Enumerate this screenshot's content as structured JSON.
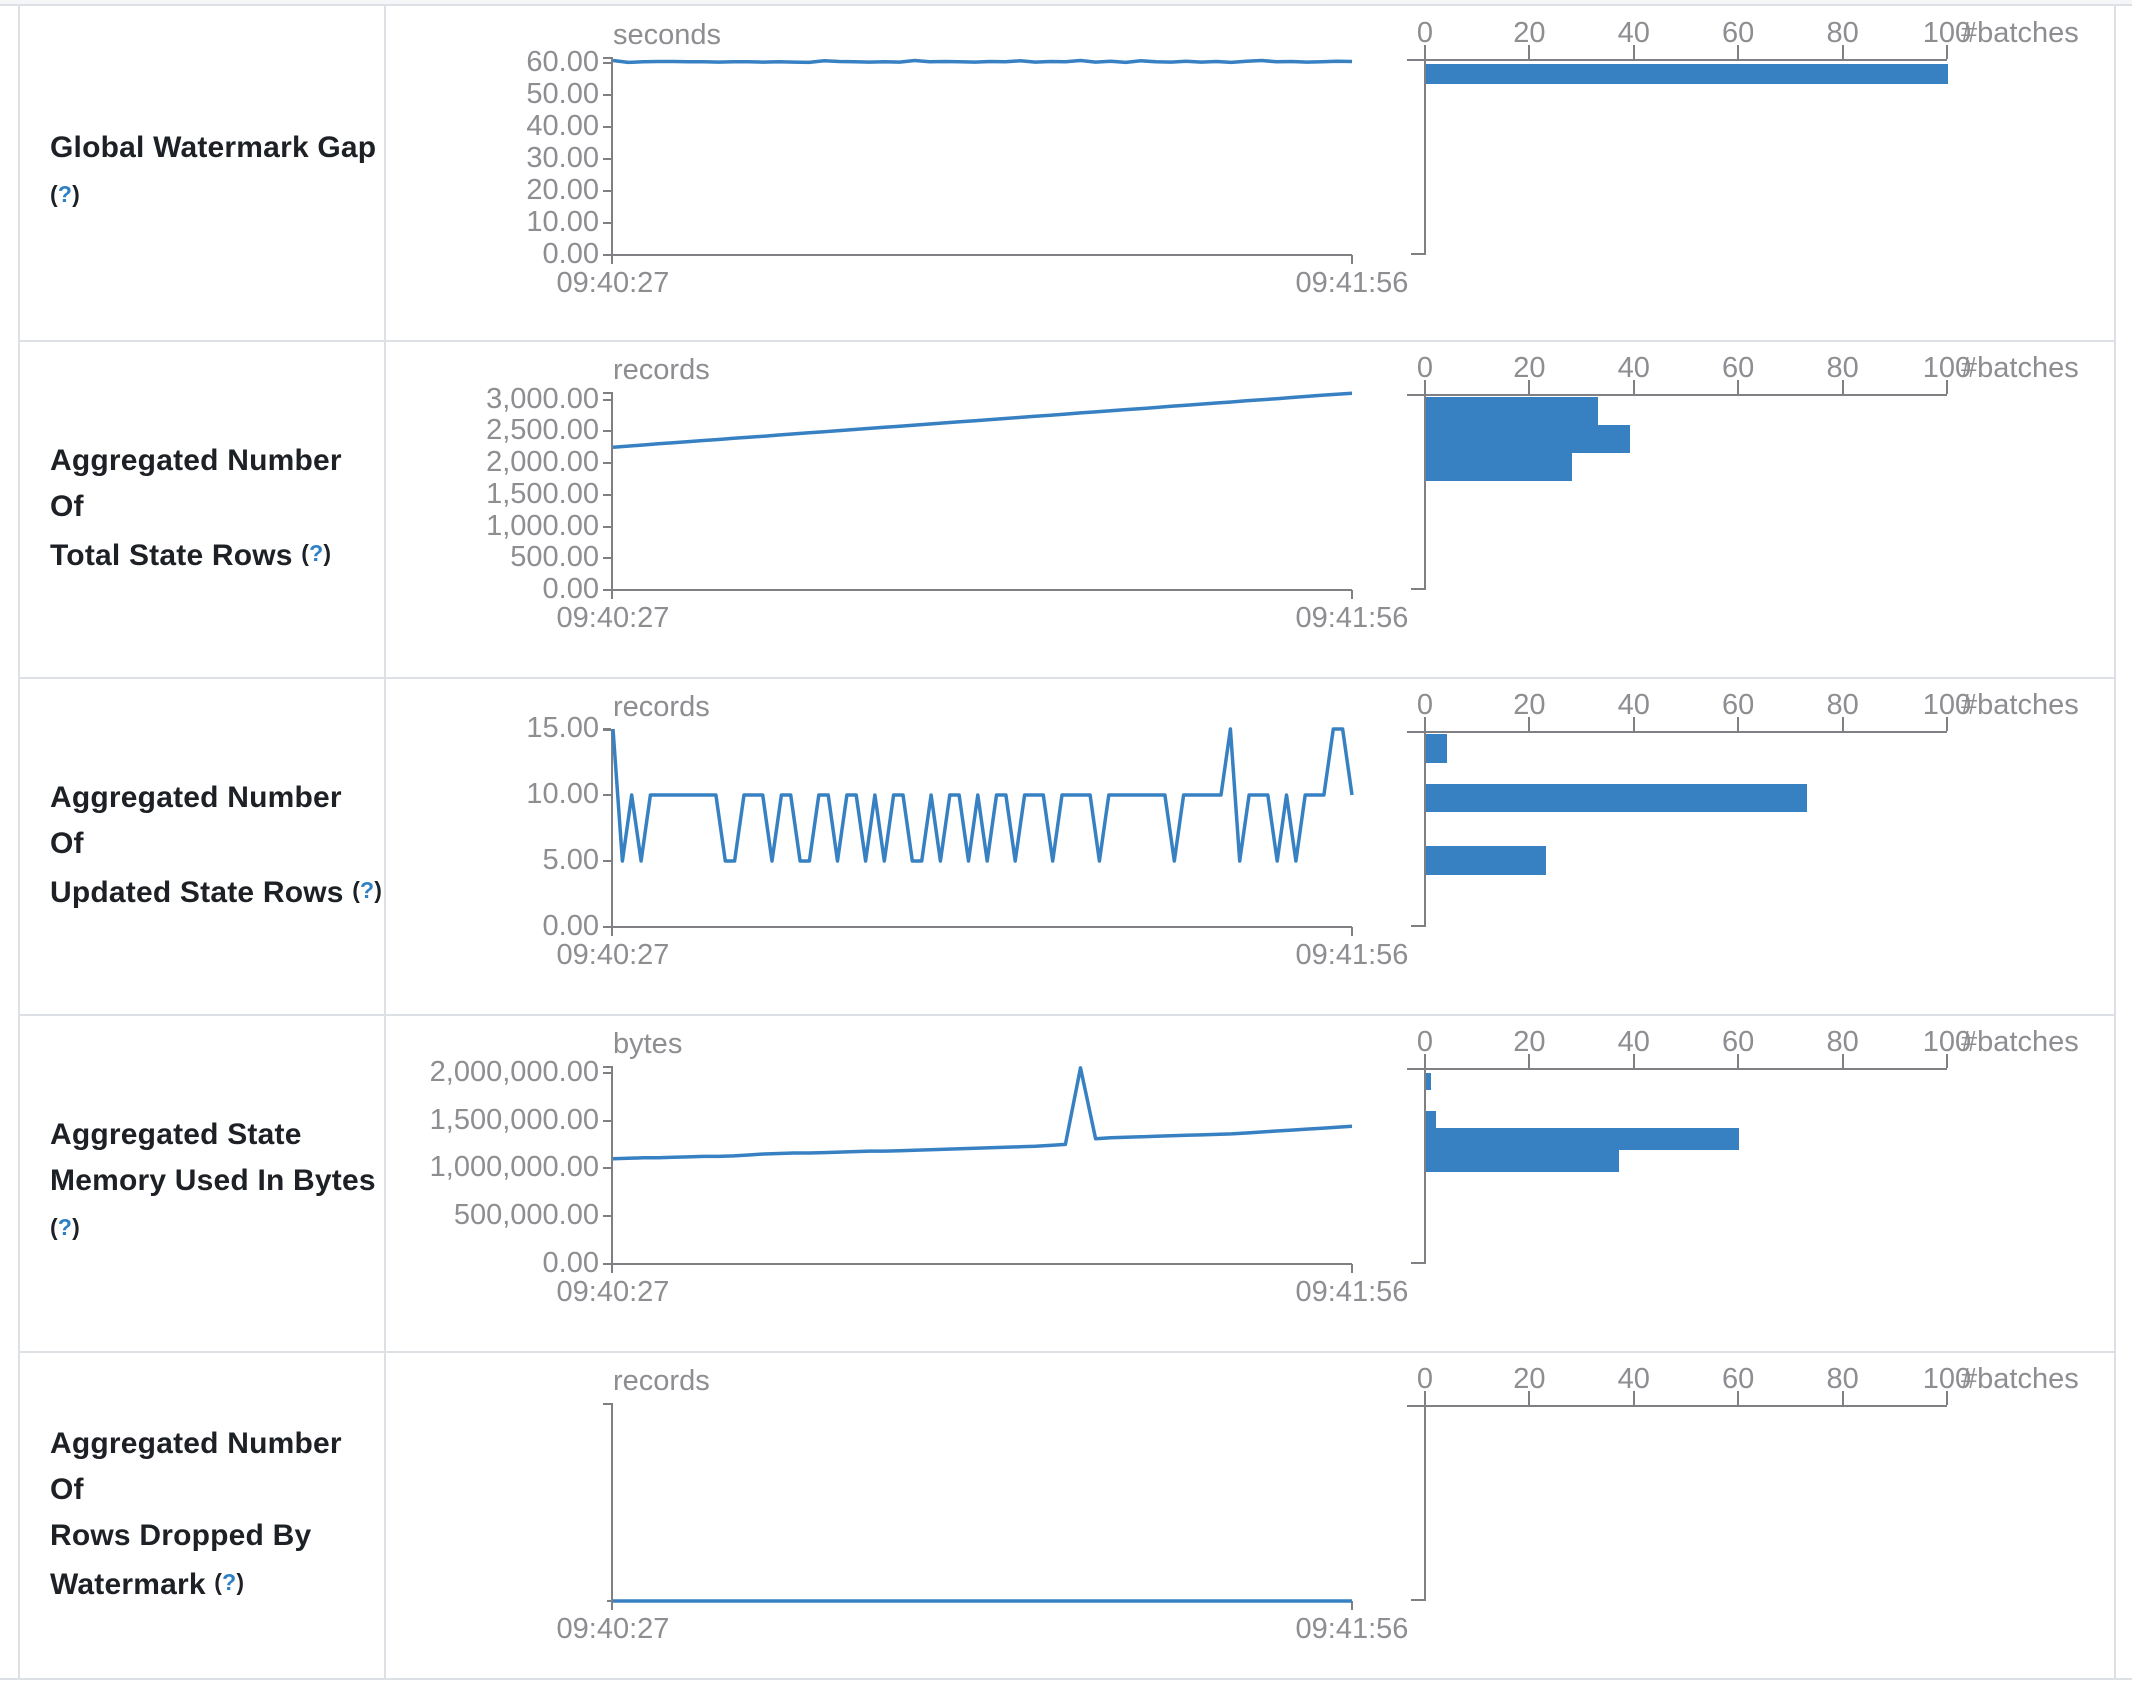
{
  "accent_color": "#3781c3",
  "axis_color": "#7f7f84",
  "muted_text_color": "#8d8d92",
  "label_text_color": "#1d2125",
  "help_marker": "(?)",
  "histogram_axis": {
    "ticks": [
      "0",
      "20",
      "40",
      "60",
      "80",
      "100"
    ],
    "tick_values": [
      0,
      20,
      40,
      60,
      80,
      100
    ],
    "unit": "#batches",
    "max": 100
  },
  "chart_data": [
    {
      "type": "line+histogram",
      "metric": "Global Watermark Gap",
      "label_lines": [
        "Global Watermark Gap",
        "(?)"
      ],
      "timeline": {
        "unit": "seconds",
        "xlabels": [
          "09:40:27",
          "09:41:56"
        ],
        "ymax": 62,
        "yticks": [
          {
            "label": "60.00",
            "v": 60
          },
          {
            "label": "50.00",
            "v": 50
          },
          {
            "label": "40.00",
            "v": 40
          },
          {
            "label": "30.00",
            "v": 30
          },
          {
            "label": "20.00",
            "v": 20
          },
          {
            "label": "10.00",
            "v": 10
          },
          {
            "label": "0.00",
            "v": 0
          }
        ],
        "series": [
          60.9,
          60.3,
          60.5,
          60.6,
          60.6,
          60.5,
          60.5,
          60.4,
          60.5,
          60.5,
          60.4,
          60.5,
          60.4,
          60.3,
          60.8,
          60.6,
          60.5,
          60.4,
          60.5,
          60.4,
          60.9,
          60.5,
          60.6,
          60.5,
          60.4,
          60.6,
          60.5,
          60.8,
          60.4,
          60.6,
          60.5,
          60.9,
          60.4,
          60.7,
          60.3,
          60.8,
          60.5,
          60.4,
          60.7,
          60.4,
          60.6,
          60.3,
          60.7,
          60.9,
          60.5,
          60.6,
          60.4,
          60.5,
          60.7,
          60.6
        ]
      },
      "histogram": {
        "bars": [
          {
            "batches": 100,
            "at_value": 60,
            "top": 0.01,
            "h": 0.105
          }
        ]
      }
    },
    {
      "type": "line+histogram",
      "metric": "Aggregated Number Of Total State Rows",
      "label_lines": [
        "Aggregated Number Of",
        "Total State Rows (?)"
      ],
      "timeline": {
        "unit": "records",
        "xlabels": [
          "09:40:27",
          "09:41:56"
        ],
        "ymax": 3120,
        "yticks": [
          {
            "label": "3,000.00",
            "v": 3000
          },
          {
            "label": "2,500.00",
            "v": 2500
          },
          {
            "label": "2,000.00",
            "v": 2000
          },
          {
            "label": "1,500.00",
            "v": 1500
          },
          {
            "label": "1,000.00",
            "v": 1000
          },
          {
            "label": "500.00",
            "v": 500
          },
          {
            "label": "0.00",
            "v": 0
          }
        ],
        "series": [
          2250,
          2268,
          2285,
          2303,
          2320,
          2338,
          2355,
          2372,
          2390,
          2407,
          2424,
          2442,
          2460,
          2477,
          2494,
          2512,
          2529,
          2546,
          2564,
          2581,
          2598,
          2616,
          2633,
          2651,
          2668,
          2685,
          2703,
          2720,
          2737,
          2755,
          2772,
          2790,
          2807,
          2824,
          2842,
          2859,
          2876,
          2894,
          2911,
          2929,
          2946,
          2963,
          2981,
          2998,
          3015,
          3033,
          3050,
          3068,
          3085,
          3100
        ]
      },
      "histogram": {
        "bars": [
          {
            "batches": 33,
            "at_value": 2950,
            "top": 0.0,
            "h": 0.148
          },
          {
            "batches": 39,
            "at_value": 2650,
            "top": 0.148,
            "h": 0.148
          },
          {
            "batches": 28,
            "at_value": 2370,
            "top": 0.296,
            "h": 0.148
          }
        ]
      }
    },
    {
      "type": "line+histogram",
      "metric": "Aggregated Number Of Updated State Rows",
      "label_lines": [
        "Aggregated Number Of",
        "Updated State Rows (?)"
      ],
      "timeline": {
        "unit": "records",
        "xlabels": [
          "09:40:27",
          "09:41:56"
        ],
        "ymax": 15,
        "yticks": [
          {
            "label": "15.00",
            "v": 15
          },
          {
            "label": "10.00",
            "v": 10
          },
          {
            "label": "5.00",
            "v": 5
          },
          {
            "label": "0.00",
            "v": 0
          }
        ],
        "series": [
          15,
          5,
          10,
          5,
          10,
          10,
          10,
          10,
          10,
          10,
          10,
          10,
          5,
          5,
          10,
          10,
          10,
          5,
          10,
          10,
          5,
          5,
          10,
          10,
          5,
          10,
          10,
          5,
          10,
          5,
          10,
          10,
          5,
          5,
          10,
          5,
          10,
          10,
          5,
          10,
          5,
          10,
          10,
          5,
          10,
          10,
          10,
          5,
          10,
          10,
          10,
          10,
          5,
          10,
          10,
          10,
          10,
          10,
          10,
          10,
          5,
          10,
          10,
          10,
          10,
          10,
          15,
          5,
          10,
          10,
          10,
          5,
          10,
          5,
          10,
          10,
          10,
          15,
          15,
          10
        ]
      },
      "histogram": {
        "bars": [
          {
            "batches": 4,
            "at_value": 15,
            "top": 0.0,
            "h": 0.15
          },
          {
            "batches": 73,
            "at_value": 10,
            "top": 0.263,
            "h": 0.15
          },
          {
            "batches": 23,
            "at_value": 5,
            "top": 0.592,
            "h": 0.15
          }
        ]
      }
    },
    {
      "type": "line+histogram",
      "metric": "Aggregated State Memory Used In Bytes",
      "label_lines": [
        "Aggregated State",
        "Memory Used In Bytes",
        "(?)"
      ],
      "timeline": {
        "unit": "bytes",
        "xlabels": [
          "09:40:27",
          "09:41:56"
        ],
        "ymax": 2070000,
        "yticks": [
          {
            "label": "2,000,000.00",
            "v": 2000000
          },
          {
            "label": "1,500,000.00",
            "v": 1500000
          },
          {
            "label": "1,000,000.00",
            "v": 1000000
          },
          {
            "label": "500,000.00",
            "v": 500000
          },
          {
            "label": "0.00",
            "v": 0
          }
        ],
        "series": [
          1100000,
          1105000,
          1110000,
          1110000,
          1115000,
          1120000,
          1125000,
          1125000,
          1130000,
          1140000,
          1150000,
          1155000,
          1160000,
          1160000,
          1165000,
          1170000,
          1175000,
          1180000,
          1180000,
          1185000,
          1190000,
          1195000,
          1200000,
          1205000,
          1210000,
          1215000,
          1220000,
          1225000,
          1230000,
          1240000,
          1250000,
          2050000,
          1310000,
          1320000,
          1325000,
          1330000,
          1335000,
          1340000,
          1345000,
          1350000,
          1355000,
          1360000,
          1370000,
          1380000,
          1390000,
          1400000,
          1410000,
          1420000,
          1430000,
          1440000
        ]
      },
      "histogram": {
        "bars": [
          {
            "batches": 1,
            "at_value": 2000000,
            "top": 0.01,
            "h": 0.09
          },
          {
            "batches": 2,
            "at_value": 1550000,
            "top": 0.21,
            "h": 0.09
          },
          {
            "batches": 60,
            "at_value": 1380000,
            "top": 0.3,
            "h": 0.115
          },
          {
            "batches": 37,
            "at_value": 1180000,
            "top": 0.415,
            "h": 0.115
          }
        ]
      }
    },
    {
      "type": "line+histogram",
      "metric": "Aggregated Number Of Rows Dropped By Watermark",
      "label_lines": [
        "Aggregated Number Of",
        "Rows Dropped By",
        "Watermark (?)"
      ],
      "timeline": {
        "unit": "records",
        "xlabels": [
          "09:40:27",
          "09:41:56"
        ],
        "ymax": 1,
        "yticks": [],
        "series": [
          0,
          0,
          0,
          0,
          0,
          0,
          0,
          0,
          0,
          0
        ]
      },
      "histogram": {
        "bars": []
      }
    }
  ]
}
